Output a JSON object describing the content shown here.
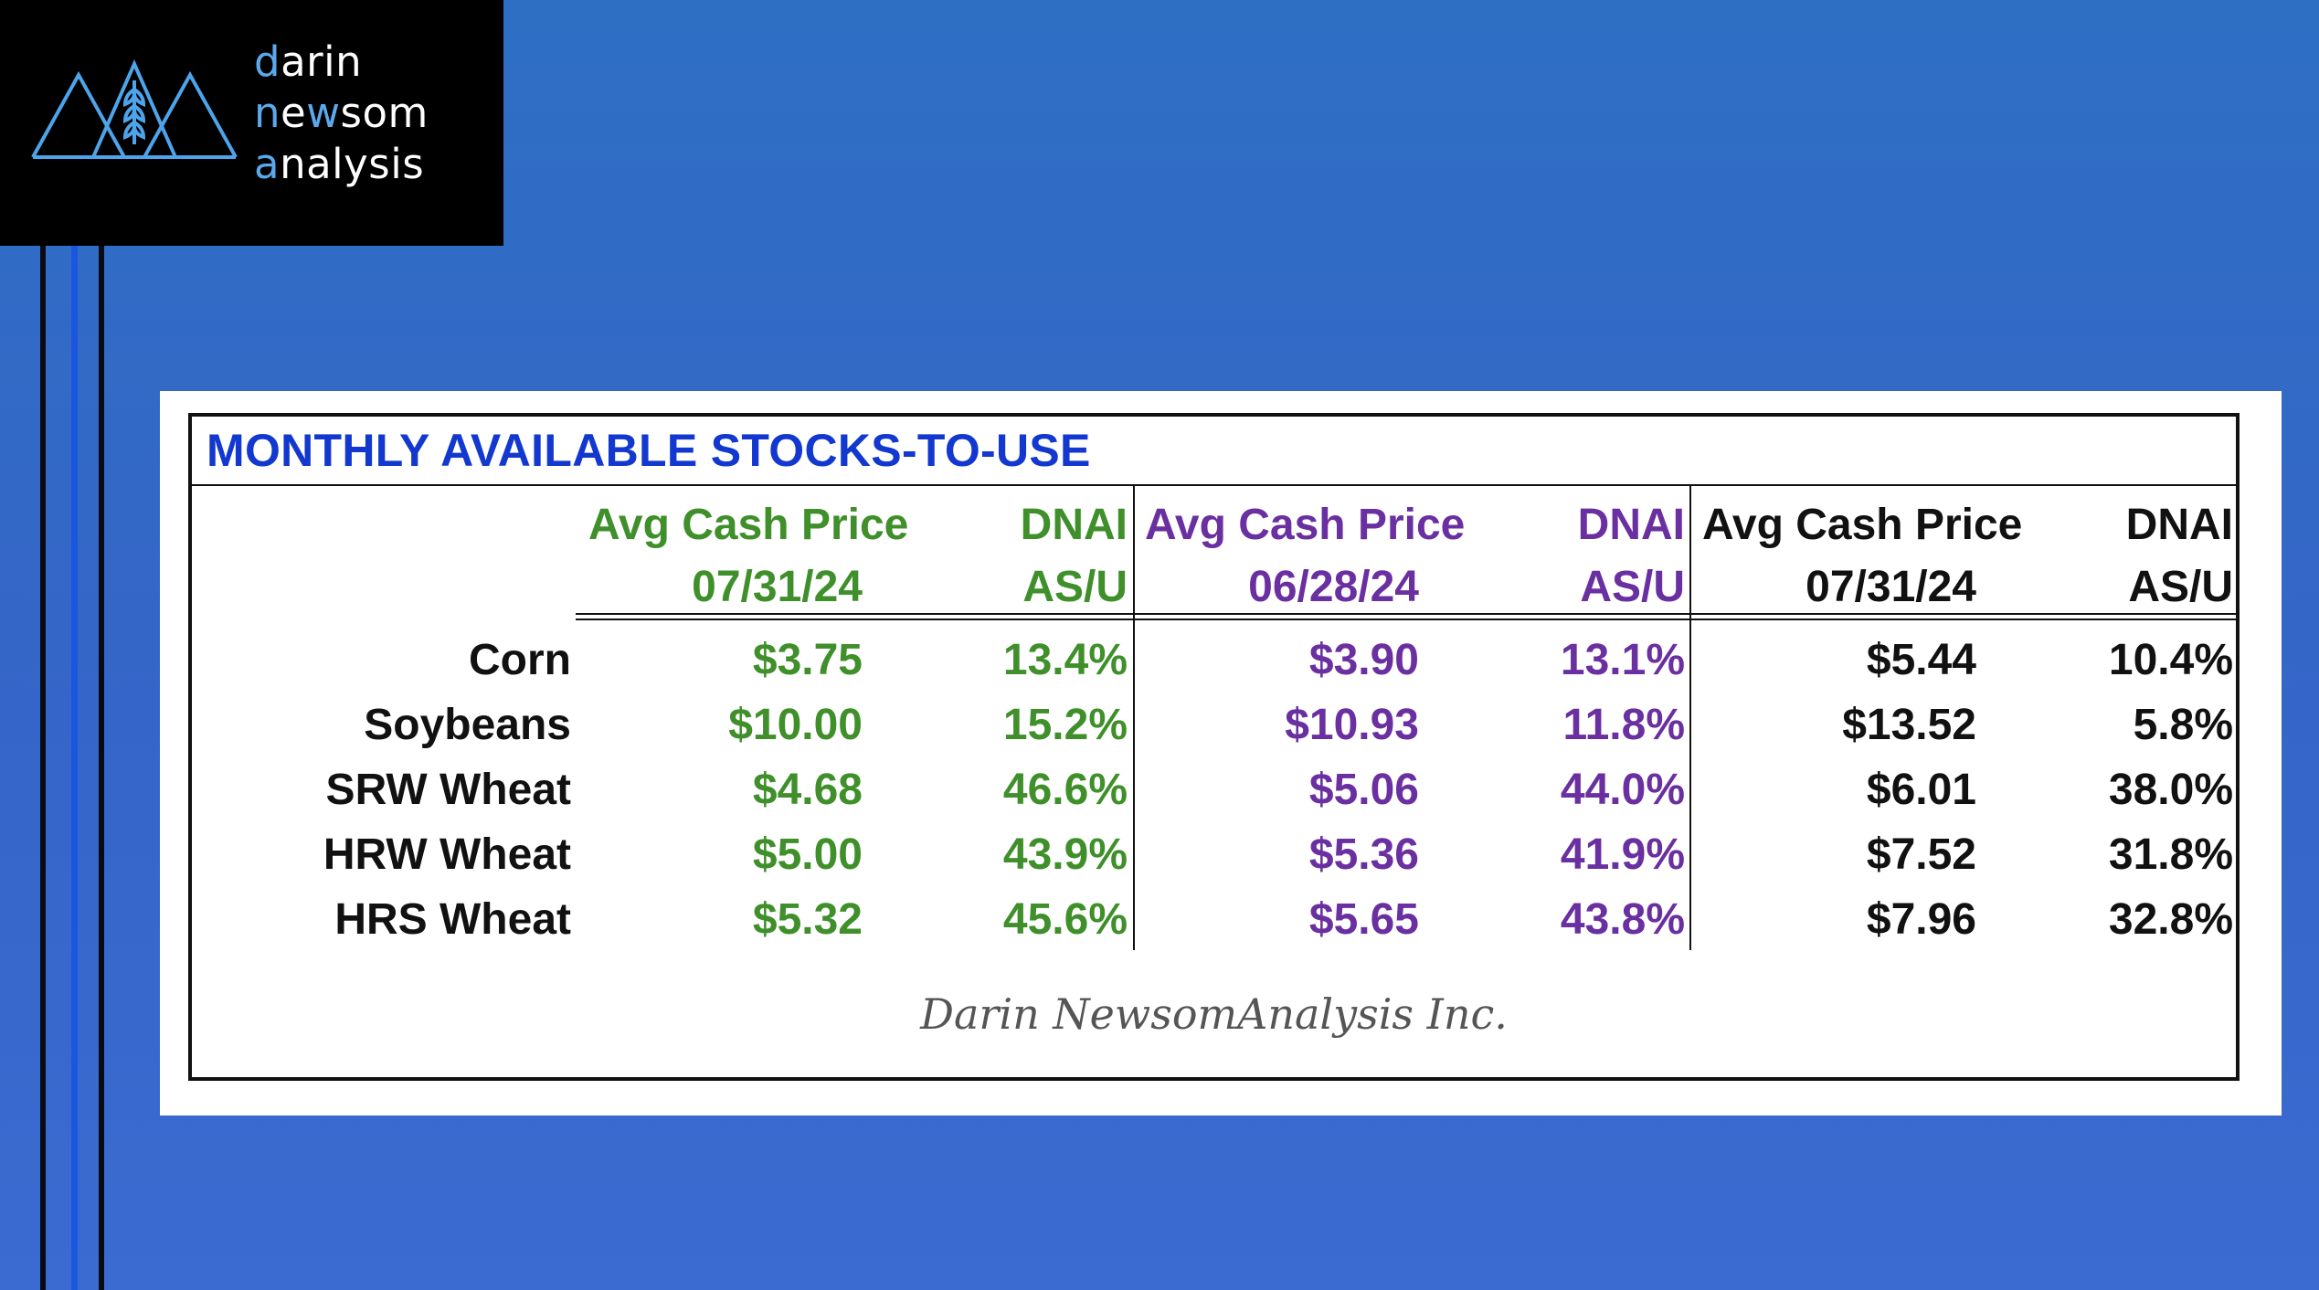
{
  "logo": {
    "line1_accent": "d",
    "line1_rest": "arin",
    "line2_accent": "n",
    "line2_mid": "e",
    "line2_accent2": "w",
    "line2_rest": "som",
    "line3_accent": "a",
    "line3_rest": "nalysis",
    "icon": "wheat-mountains-icon"
  },
  "table": {
    "title": "MONTHLY AVAILABLE STOCKS-TO-USE",
    "groups": [
      {
        "price_header1": "Avg Cash Price",
        "price_header2": "07/31/24",
        "asu_header1": "DNAI",
        "asu_header2": "AS/U",
        "color": "#3f8f2a"
      },
      {
        "price_header1": "Avg Cash Price",
        "price_header2": "06/28/24",
        "asu_header1": "DNAI",
        "asu_header2": "AS/U",
        "color": "#6a2fa0"
      },
      {
        "price_header1": "Avg Cash Price",
        "price_header2": "07/31/24",
        "asu_header1": "DNAI",
        "asu_header2": "AS/U",
        "color": "#111111"
      }
    ],
    "rows": [
      {
        "label": "Corn",
        "cells": [
          "$3.75",
          "13.4%",
          "$3.90",
          "13.1%",
          "$5.44",
          "10.4%"
        ]
      },
      {
        "label": "Soybeans",
        "cells": [
          "$10.00",
          "15.2%",
          "$10.93",
          "11.8%",
          "$13.52",
          "5.8%"
        ]
      },
      {
        "label": "SRW Wheat",
        "cells": [
          "$4.68",
          "46.6%",
          "$5.06",
          "44.0%",
          "$6.01",
          "38.0%"
        ]
      },
      {
        "label": "HRW Wheat",
        "cells": [
          "$5.00",
          "43.9%",
          "$5.36",
          "41.9%",
          "$7.52",
          "31.8%"
        ]
      },
      {
        "label": "HRS Wheat",
        "cells": [
          "$5.32",
          "45.6%",
          "$5.65",
          "43.8%",
          "$7.96",
          "32.8%"
        ]
      }
    ],
    "footer": "Darin NewsomAnalysis Inc."
  }
}
